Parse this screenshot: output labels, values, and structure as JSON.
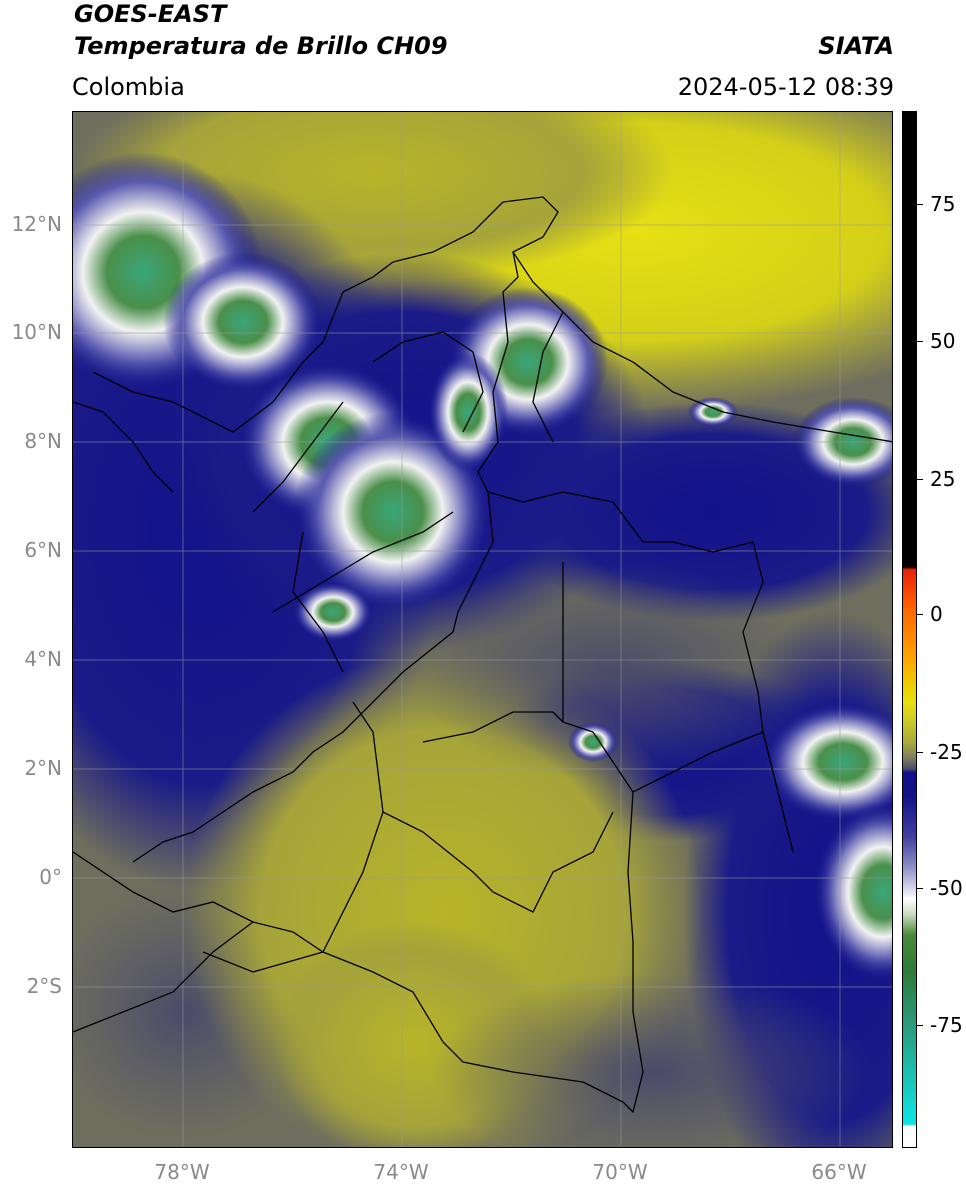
{
  "header": {
    "satellite": "GOES-EAST",
    "product": "Temperatura de Brillo CH09",
    "region": "Colombia",
    "agency": "SIATA",
    "datetime": "2024-05-12 08:39"
  },
  "map": {
    "lat_labels": [
      "12°N",
      "10°N",
      "8°N",
      "6°N",
      "4°N",
      "2°N",
      "0°",
      "2°S"
    ],
    "lon_labels": [
      "78°W",
      "74°W",
      "70°W",
      "66°W"
    ],
    "lon_range": [
      -80,
      -65
    ],
    "lat_range": [
      -4.2,
      14
    ]
  },
  "colorbar": {
    "ticks": [
      "75",
      "50",
      "25",
      "0",
      "-25",
      "-50",
      "-75"
    ],
    "range": [
      -95,
      90
    ],
    "colors": {
      "black": "#000000",
      "red": "#e8200a",
      "orange": "#ff9900",
      "yellow": "#e8e010",
      "olive": "#c8c820",
      "gray": "#7a7a60",
      "navy": "#10108a",
      "white": "#ffffff",
      "green": "#3a8a3a",
      "cyan": "#10e0e0"
    }
  }
}
